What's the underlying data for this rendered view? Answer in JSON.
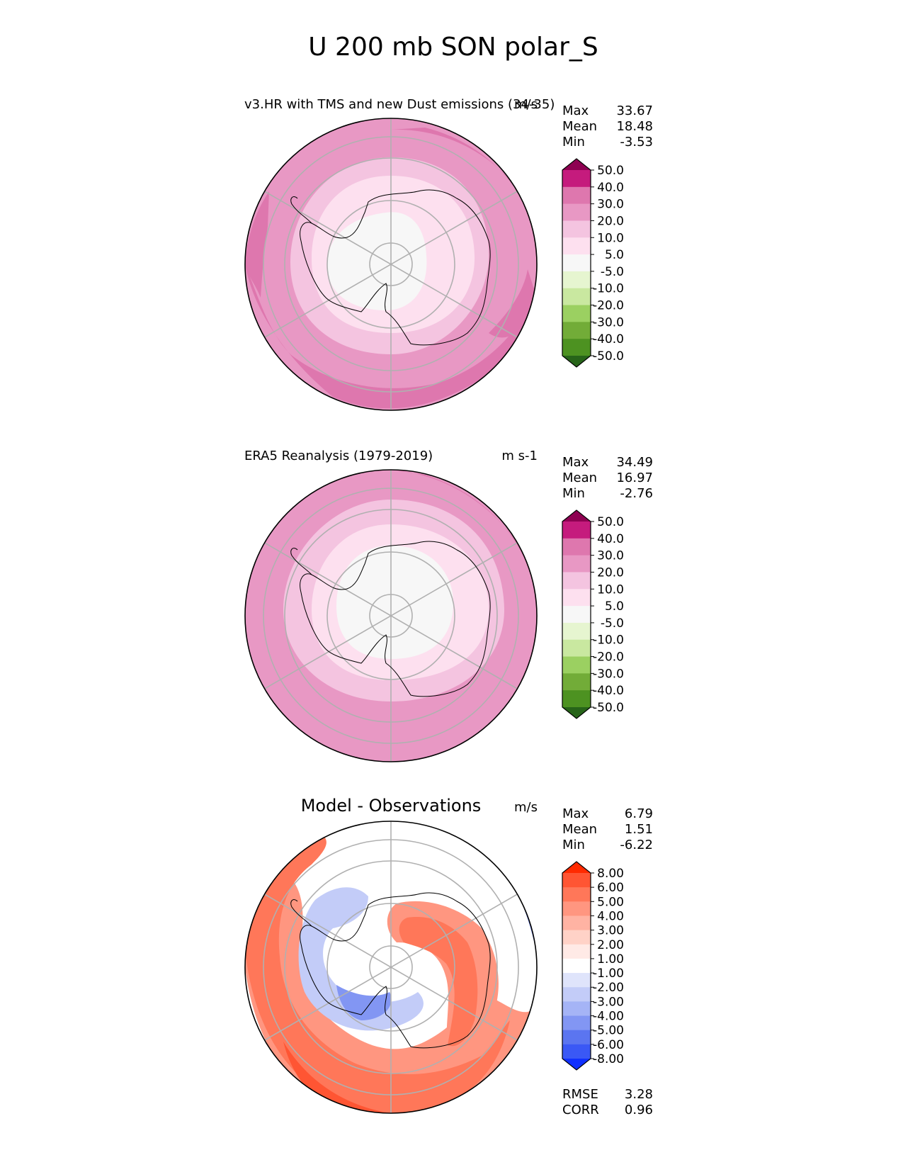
{
  "figure": {
    "title": "U 200 mb SON polar_S"
  },
  "chart_data": [
    {
      "type": "heatmap",
      "projection": "south-polar-stereographic",
      "title": "v3.HR with TMS and new Dust emissions (34-35)",
      "units": "m/s",
      "stats": [
        {
          "label": "Max",
          "value": "33.67"
        },
        {
          "label": "Mean",
          "value": "18.48"
        },
        {
          "label": "Min",
          "value": "-3.53"
        }
      ],
      "colorbar": {
        "levels": [
          "50.0",
          "40.0",
          "30.0",
          "20.0",
          "10.0",
          "5.0",
          "-5.0",
          "-10.0",
          "-20.0",
          "-30.0",
          "-40.0",
          "-50.0"
        ],
        "colors": [
          "#8e0152",
          "#c51b7d",
          "#de77ae",
          "#e898c4",
          "#f4c4e0",
          "#fde0ef",
          "#f7f7f7",
          "#e6f5d0",
          "#c9e8a0",
          "#9bd061",
          "#72ac38",
          "#4d9221",
          "#276419"
        ],
        "extend": "both"
      },
      "bands": [
        {
          "value": 35,
          "color": "#de77ae"
        },
        {
          "value": 25,
          "color": "#e898c4"
        },
        {
          "value": 15,
          "color": "#f4c4e0"
        },
        {
          "value": 7,
          "color": "#fde0ef"
        },
        {
          "value": 0,
          "color": "#f7f7f7"
        }
      ]
    },
    {
      "type": "heatmap",
      "projection": "south-polar-stereographic",
      "title": "ERA5 Reanalysis (1979-2019)",
      "units": "m s-1",
      "stats": [
        {
          "label": "Max",
          "value": "34.49"
        },
        {
          "label": "Mean",
          "value": "16.97"
        },
        {
          "label": "Min",
          "value": "-2.76"
        }
      ],
      "colorbar": {
        "levels": [
          "50.0",
          "40.0",
          "30.0",
          "20.0",
          "10.0",
          "5.0",
          "-5.0",
          "-10.0",
          "-20.0",
          "-30.0",
          "-40.0",
          "-50.0"
        ],
        "colors": [
          "#8e0152",
          "#c51b7d",
          "#de77ae",
          "#e898c4",
          "#f4c4e0",
          "#fde0ef",
          "#f7f7f7",
          "#e6f5d0",
          "#c9e8a0",
          "#9bd061",
          "#72ac38",
          "#4d9221",
          "#276419"
        ],
        "extend": "both"
      },
      "bands": [
        {
          "value": 25,
          "color": "#e898c4"
        },
        {
          "value": 15,
          "color": "#f4c4e0"
        },
        {
          "value": 7,
          "color": "#fde0ef"
        },
        {
          "value": 0,
          "color": "#f7f7f7"
        }
      ]
    },
    {
      "type": "heatmap",
      "projection": "south-polar-stereographic",
      "title": "Model - Observations",
      "units": "m/s",
      "stats": [
        {
          "label": "Max",
          "value": "6.79"
        },
        {
          "label": "Mean",
          "value": "1.51"
        },
        {
          "label": "Min",
          "value": "-6.22"
        }
      ],
      "metrics": [
        {
          "label": "RMSE",
          "value": "3.28"
        },
        {
          "label": "CORR",
          "value": "0.96"
        }
      ],
      "colorbar": {
        "levels": [
          "8.00",
          "6.00",
          "5.00",
          "4.00",
          "3.00",
          "2.00",
          "1.00",
          "-1.00",
          "-2.00",
          "-3.00",
          "-4.00",
          "-5.00",
          "-6.00",
          "-8.00"
        ],
        "colors": [
          "#ff2a00",
          "#ff5533",
          "#ff7759",
          "#ff9680",
          "#ffb3a3",
          "#ffd2c7",
          "#ffeae6",
          "#ffffff",
          "#dfe4fb",
          "#c3ccf8",
          "#a5b4f6",
          "#8296f3",
          "#5b75f0",
          "#3a58f5",
          "#1030ff"
        ],
        "extend": "both"
      },
      "bands": [
        {
          "value": 4.5,
          "color": "#ff7759"
        },
        {
          "value": 2.5,
          "color": "#ffb3a3"
        },
        {
          "value": 0,
          "color": "#ffffff"
        }
      ]
    }
  ]
}
